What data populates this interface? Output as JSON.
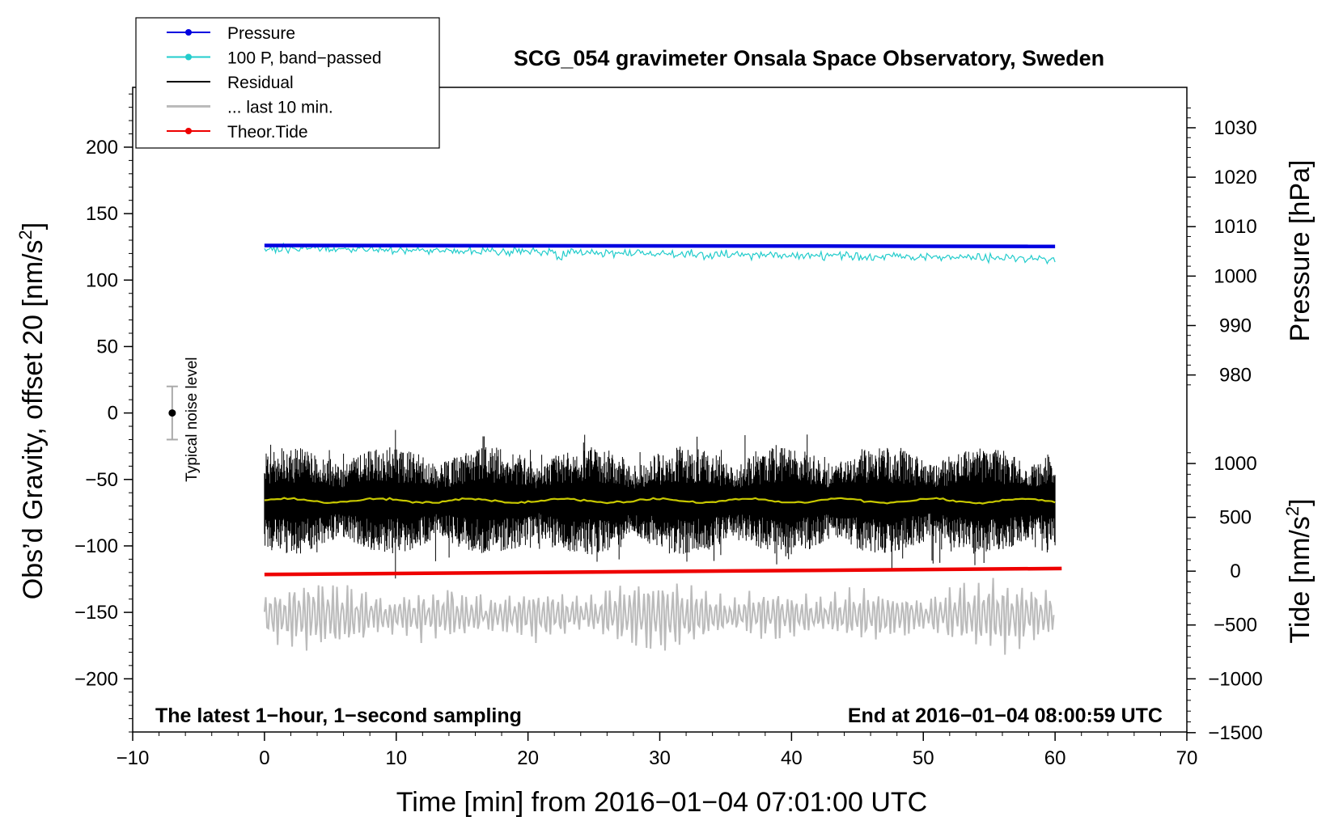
{
  "chart_data": {
    "type": "line",
    "title": "SCG_054 gravimeter Onsala Space Observatory, Sweden",
    "xlabel": "Time [min] from 2016−01−04 07:01:00 UTC",
    "ylabel_left": "Obs’d Gravity, offset 20 [nm/s²]",
    "ylabel_left_parts": [
      "Obs’d Gravity, offset 20 [nm/s",
      "2",
      "]"
    ],
    "ylabel_pressure": "Pressure [hPa]",
    "ylabel_tide": "Tide [nm/s²]",
    "ylabel_tide_parts": [
      "Tide [nm/s",
      "2",
      "]"
    ],
    "xlim": [
      -10,
      70
    ],
    "ylim_left": [
      -240,
      245
    ],
    "x_ticks": [
      -10,
      0,
      10,
      20,
      30,
      40,
      50,
      60,
      70
    ],
    "x_tick_labels": [
      "−10",
      "0",
      "10",
      "20",
      "30",
      "40",
      "50",
      "60",
      "70"
    ],
    "y_ticks_left": [
      -200,
      -150,
      -100,
      -50,
      0,
      50,
      100,
      150,
      200
    ],
    "y_tick_labels_left": [
      "−200",
      "−150",
      "−100",
      "−50",
      "0",
      "50",
      "100",
      "150",
      "200"
    ],
    "pressure_axis": {
      "ticks": [
        980,
        990,
        1000,
        1010,
        1020,
        1030
      ],
      "tick_labels": [
        "980",
        "990",
        "1000",
        "1010",
        "1020",
        "1030"
      ],
      "gravity_at_1000": 103,
      "gravity_per_hPa": 3.72
    },
    "tide_axis": {
      "ticks": [
        -1500,
        -1000,
        -500,
        0,
        500,
        1000
      ],
      "tick_labels": [
        "−1500",
        "−1000",
        "−500",
        "0",
        "500",
        "1000"
      ],
      "gravity_at_0": -119,
      "gravity_per_unit": 0.081
    },
    "series": [
      {
        "name": "Pressure",
        "color": "#0000e0",
        "marker": "dot",
        "x_range": [
          0,
          60
        ],
        "level_hPa": 1006.2,
        "end_hPa": 1006.0
      },
      {
        "name": "100 P, band−passed",
        "color": "#22cccc",
        "marker": "dot",
        "x_range": [
          0,
          60
        ],
        "level_start": 124,
        "level_end": 116
      },
      {
        "name": "Residual",
        "color": "#000000",
        "marker": "none",
        "x_range": [
          0,
          60
        ],
        "mean": -66,
        "typical_amplitude": 18,
        "max": -8,
        "min": -128
      },
      {
        "name": "... last 10 min.",
        "color": "#bbbbbb",
        "marker": "none",
        "x_range": [
          0,
          60
        ],
        "mean": -152,
        "typical_amplitude": 22
      },
      {
        "name": "Theor.Tide",
        "color": "#ee0000",
        "marker": "dot",
        "x_range": [
          0,
          60.5
        ],
        "start": -121.5,
        "end": -117
      }
    ],
    "residual_smoothed": {
      "color": "#c8c800",
      "level": -66
    },
    "noise_bar": {
      "label": "Typical noise level",
      "x": -7,
      "center": 0,
      "half_range": 20
    },
    "annotations": {
      "left": "The latest 1−hour, 1−second sampling",
      "right": "End at 2016−01−04 08:00:59 UTC"
    },
    "legend_position": "top-left"
  }
}
